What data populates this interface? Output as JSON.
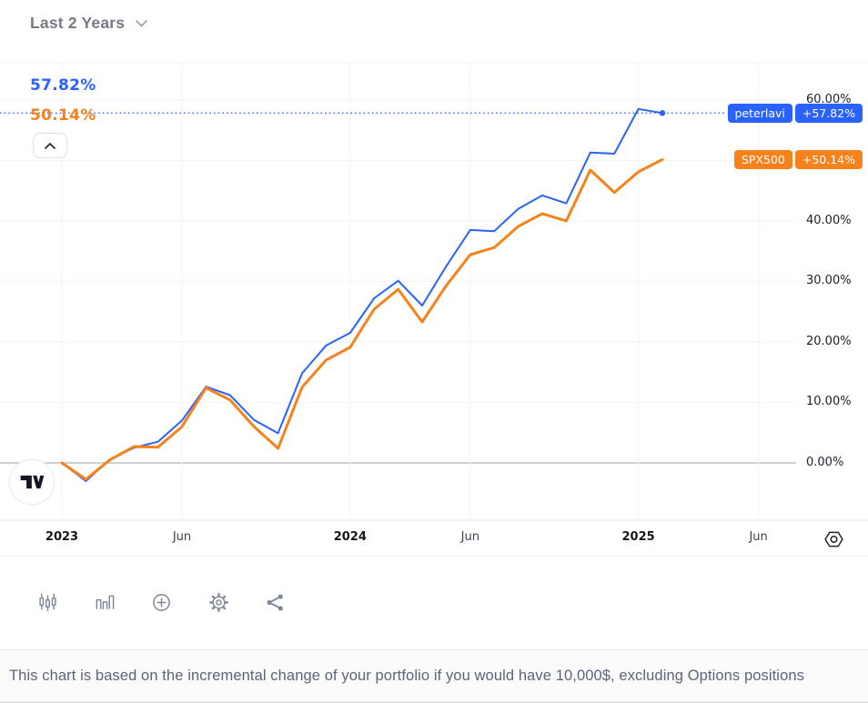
{
  "header": {
    "range_label": "Last 2 Years"
  },
  "overlay": {
    "blue_value": "57.82%",
    "orange_value": "50.14%"
  },
  "colors": {
    "blue": "#2962FF",
    "orange": "#F7821B",
    "grid": "#F2F3F5",
    "zero_line": "#9DA0A8",
    "pane_border": "#EFF0F3",
    "icon_gray": "#7C8698"
  },
  "chart_data": {
    "type": "line",
    "title": "Portfolio incremental change vs SPX500 — Last 2 Years",
    "x": [
      "Jan 2023",
      "Feb 2023",
      "Mar 2023",
      "Apr 2023",
      "May 2023",
      "Jun 2023",
      "Jul 2023",
      "Aug 2023",
      "Sep 2023",
      "Oct 2023",
      "Nov 2023",
      "Dec 2023",
      "Jan 2024",
      "Feb 2024",
      "Mar 2024",
      "Apr 2024",
      "May 2024",
      "Jun 2024",
      "Jul 2024",
      "Aug 2024",
      "Sep 2024",
      "Oct 2024",
      "Nov 2024",
      "Dec 2024",
      "Jan 2025",
      "Feb 2025"
    ],
    "series": [
      {
        "name": "peterlavi",
        "color": "#2962FF",
        "values": [
          0,
          -3.0,
          0.6,
          2.5,
          3.5,
          7.0,
          12.6,
          11.2,
          7.1,
          4.9,
          14.8,
          19.4,
          21.5,
          27.2,
          30.1,
          26.0,
          32.5,
          38.5,
          38.3,
          42.0,
          44.2,
          42.9,
          51.3,
          51.1,
          58.5,
          57.82
        ],
        "final_label": "+57.82%"
      },
      {
        "name": "SPX500",
        "color": "#F7821B",
        "values": [
          0,
          -2.7,
          0.5,
          2.7,
          2.6,
          6.0,
          12.4,
          10.4,
          6.0,
          2.4,
          12.5,
          17.0,
          19.1,
          25.4,
          28.7,
          23.3,
          29.3,
          34.4,
          35.6,
          39.1,
          41.2,
          40.0,
          48.4,
          44.7,
          48.1,
          50.14
        ],
        "final_label": "+50.14%"
      }
    ],
    "y_axis": {
      "unit": "%",
      "side": "right",
      "range": [
        -8,
        66
      ],
      "grid_values": [
        0,
        10,
        20,
        30,
        40,
        50,
        60
      ],
      "visible_labels": [
        {
          "value": 60,
          "label": "60.00%"
        },
        {
          "value": 40,
          "label": "40.00%"
        },
        {
          "value": 30,
          "label": "30.00%"
        },
        {
          "value": 20,
          "label": "20.00%"
        },
        {
          "value": 10,
          "label": "10.00%"
        },
        {
          "value": 0,
          "label": "0.00%"
        }
      ]
    },
    "x_axis": {
      "ticks": [
        {
          "label": "2023",
          "month_index": 0,
          "bold": true
        },
        {
          "label": "Jun",
          "month_index": 5,
          "bold": false
        },
        {
          "label": "2024",
          "month_index": 12,
          "bold": true
        },
        {
          "label": "Jun",
          "month_index": 17,
          "bold": false
        },
        {
          "label": "2025",
          "month_index": 24,
          "bold": true
        },
        {
          "label": "Jun",
          "month_index": 29,
          "bold": false
        }
      ]
    },
    "reference_line": {
      "value": 57.82,
      "style": "dotted",
      "color": "#2962FF"
    },
    "grid": true,
    "legend_position": "right-on-chart"
  },
  "badges": [
    {
      "name": "peterlavi",
      "value_label": "+57.82%",
      "value": 57.82,
      "color": "#2962FF"
    },
    {
      "name": "SPX500",
      "value_label": "+50.14%",
      "value": 50.14,
      "color": "#F7821B"
    }
  ],
  "toolbar": {
    "icons": [
      {
        "name": "candlestick-chart"
      },
      {
        "name": "bar-chart"
      },
      {
        "name": "add"
      },
      {
        "name": "settings"
      },
      {
        "name": "share"
      }
    ]
  },
  "axis_toolbar": {
    "icon": "hexagon-eye"
  },
  "logo": {
    "name": "tradingview"
  },
  "footer": {
    "disclaimer": "This chart is based on the incremental change of your portfolio if you would have 10,000$, excluding Options positions"
  }
}
